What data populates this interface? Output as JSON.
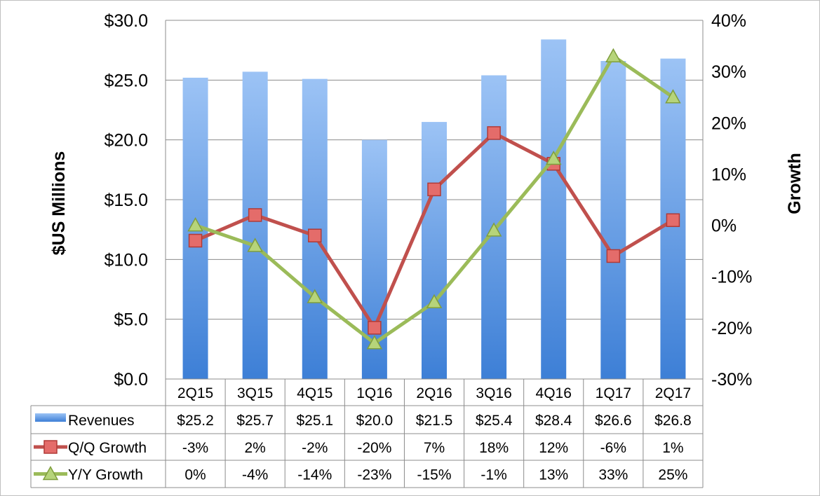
{
  "chart_data": {
    "type": "bar",
    "categories": [
      "2Q15",
      "3Q15",
      "4Q15",
      "1Q16",
      "2Q16",
      "3Q16",
      "4Q16",
      "1Q17",
      "2Q17"
    ],
    "ylabel": "$US Millions",
    "y2label": "Growth",
    "ylim": [
      0,
      30
    ],
    "y2lim": [
      -30,
      40
    ],
    "y_ticks": [
      "$0.0",
      "$5.0",
      "$10.0",
      "$15.0",
      "$20.0",
      "$25.0",
      "$30.0"
    ],
    "y2_ticks": [
      "-30%",
      "-20%",
      "-10%",
      "0%",
      "10%",
      "20%",
      "30%",
      "40%"
    ],
    "grid": true,
    "legend_placement": "data-table-left",
    "series": [
      {
        "name": "Revenues",
        "kind": "bar",
        "axis": "left",
        "values": [
          25.2,
          25.7,
          25.1,
          20.0,
          21.5,
          25.4,
          28.4,
          26.6,
          26.8
        ],
        "labels": [
          "$25.2",
          "$25.7",
          "$25.1",
          "$20.0",
          "$21.5",
          "$25.4",
          "$28.4",
          "$26.6",
          "$26.8"
        ],
        "color": "#5b9bd5"
      },
      {
        "name": "Q/Q Growth",
        "kind": "line",
        "marker": "square",
        "axis": "right",
        "values": [
          -3,
          2,
          -2,
          -20,
          7,
          18,
          12,
          -6,
          1
        ],
        "labels": [
          "-3%",
          "2%",
          "-2%",
          "-20%",
          "7%",
          "18%",
          "12%",
          "-6%",
          "1%"
        ],
        "color": "#c0504d"
      },
      {
        "name": "Y/Y Growth",
        "kind": "line",
        "marker": "triangle",
        "axis": "right",
        "values": [
          0,
          -4,
          -14,
          -23,
          -15,
          -1,
          13,
          33,
          25
        ],
        "labels": [
          "0%",
          "-4%",
          "-14%",
          "-23%",
          "-15%",
          "-1%",
          "13%",
          "33%",
          "25%"
        ],
        "color": "#9bbb59"
      }
    ]
  }
}
